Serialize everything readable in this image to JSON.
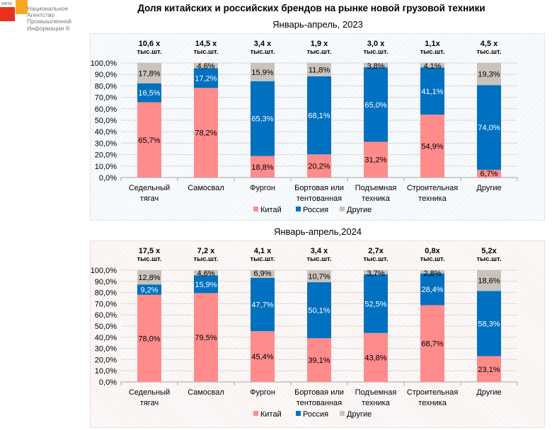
{
  "logo": {
    "abbr": "НАПИ",
    "name_lines": [
      "Национальное",
      "Агентство",
      "Промышленной",
      "Информации ®"
    ]
  },
  "title": "Доля китайских и российских брендов на рынке новой грузовой техники",
  "colors": {
    "china": "#ff8b8b",
    "russia": "#0070c0",
    "other": "#c9c3bc"
  },
  "chart_data": [
    {
      "type": "bar",
      "stacked": true,
      "title": "Январь-апрель,  2023",
      "categories": [
        [
          "Седельный",
          "тягач"
        ],
        [
          "Самосвал"
        ],
        [
          "Фургон"
        ],
        [
          "Бортовая или",
          "тентованная"
        ],
        [
          "Подъемная",
          "техника"
        ],
        [
          "Строительная",
          "техника"
        ],
        [
          "Другие"
        ]
      ],
      "totals": [
        [
          "10,6 х",
          "тыс.шт."
        ],
        [
          "14,5 х",
          "тыс.шт."
        ],
        [
          "3,4 х",
          "тыс.шт."
        ],
        [
          "1,9 х",
          "тыс.шт."
        ],
        [
          "3,0 х",
          "тыс.шт."
        ],
        [
          "1,1х",
          "тыс.шт."
        ],
        [
          "4,5 х",
          "тыс.шт."
        ]
      ],
      "series": [
        {
          "name": "Китай",
          "key": "china",
          "values": [
            65.7,
            78.2,
            18.8,
            20.2,
            31.2,
            54.9,
            6.7
          ]
        },
        {
          "name": "Россия",
          "key": "russia",
          "values": [
            16.5,
            17.2,
            65.3,
            68.1,
            65.0,
            41.1,
            74.0
          ]
        },
        {
          "name": "Другие",
          "key": "other",
          "values": [
            17.8,
            4.6,
            15.9,
            11.8,
            3.8,
            4.1,
            19.3
          ]
        }
      ],
      "yticks": [
        "0,0%",
        "10,0%",
        "20,0%",
        "30,0%",
        "40,0%",
        "50,0%",
        "60,0%",
        "70,0%",
        "80,0%",
        "90,0%",
        "100,0%"
      ],
      "ylim": [
        0,
        100
      ],
      "grid": true,
      "legend": "bottom",
      "xlabel": "",
      "ylabel": ""
    },
    {
      "type": "bar",
      "stacked": true,
      "title": "Январь-апрель,2024",
      "categories": [
        [
          "Седельный",
          "тягач"
        ],
        [
          "Самосвал"
        ],
        [
          "Фургон"
        ],
        [
          "Бортовая или",
          "тентованная"
        ],
        [
          "Подъемная",
          "техника"
        ],
        [
          "Строительная",
          "техника"
        ],
        [
          "Другие"
        ]
      ],
      "totals": [
        [
          "17,5 х",
          "тыс.шт."
        ],
        [
          "7,2 х",
          "тыс.шт."
        ],
        [
          "4,1 х",
          "тыс.шт."
        ],
        [
          "3,4 х",
          "тыс.шт."
        ],
        [
          "2,7х",
          "тыс.шт."
        ],
        [
          "0,8х",
          "тыс.шт."
        ],
        [
          "5,2х",
          "тыс.шт."
        ]
      ],
      "series": [
        {
          "name": "Китай",
          "key": "china",
          "values": [
            78.0,
            79.5,
            45.4,
            39.1,
            43.8,
            68.7,
            23.1
          ]
        },
        {
          "name": "Россия",
          "key": "russia",
          "values": [
            9.2,
            15.9,
            47.7,
            50.1,
            52.5,
            28.4,
            58.3
          ]
        },
        {
          "name": "Другие",
          "key": "other",
          "values": [
            12.8,
            4.6,
            6.9,
            10.7,
            3.7,
            2.8,
            18.6
          ]
        }
      ],
      "yticks": [
        "0,0%",
        "10,0%",
        "20,0%",
        "30,0%",
        "40,0%",
        "50,0%",
        "60,0%",
        "70,0%",
        "80,0%",
        "90,0%",
        "100,0%"
      ],
      "ylim": [
        0,
        100
      ],
      "grid": true,
      "legend": "bottom",
      "xlabel": "",
      "ylabel": ""
    }
  ]
}
